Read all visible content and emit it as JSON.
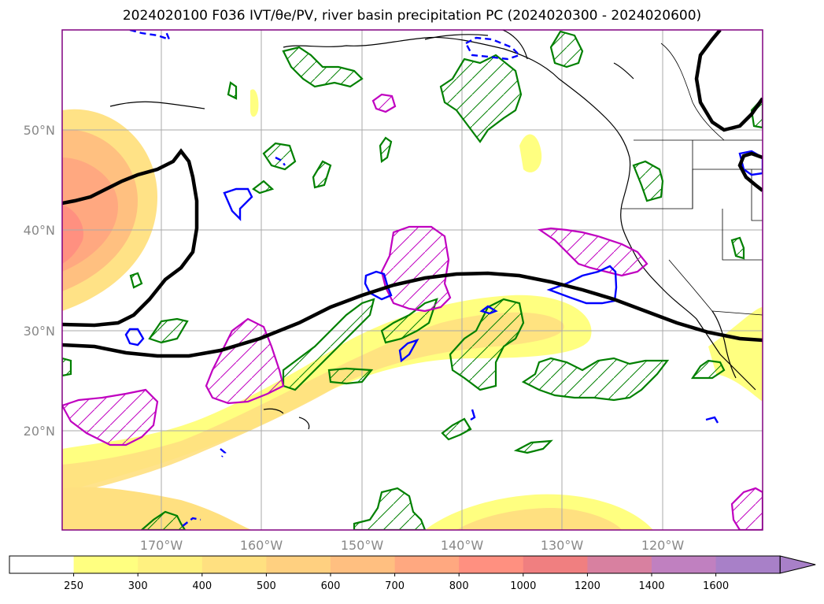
{
  "title": "2024020100 F036 IVT/θe/PV, river basin precipitation PC (2024020300 - 2024020600)",
  "latitude_labels": [
    "50°N",
    "40°N",
    "30°N",
    "20°N"
  ],
  "longitude_labels": [
    "170°W",
    "160°W",
    "150°W",
    "140°W",
    "130°W",
    "120°W"
  ],
  "colorbar": {
    "ticks": [
      "250",
      "300",
      "400",
      "500",
      "600",
      "700",
      "800",
      "1000",
      "1200",
      "1400",
      "1600"
    ],
    "colors": [
      "#ffffff",
      "#ffff80",
      "#fff180",
      "#ffe080",
      "#ffd080",
      "#ffbf80",
      "#ffa880",
      "#ff9080",
      "#f07f80",
      "#d880a0",
      "#c080c0",
      "#a880c8"
    ],
    "extend": "max"
  },
  "colors": {
    "pv_contour": "#000000",
    "precip_pc_green": "#008000",
    "precip_pc_magenta": "#c000c0",
    "theta_e_blue": "#0000ff",
    "coastline": "#000000",
    "frame": "#800080"
  }
}
